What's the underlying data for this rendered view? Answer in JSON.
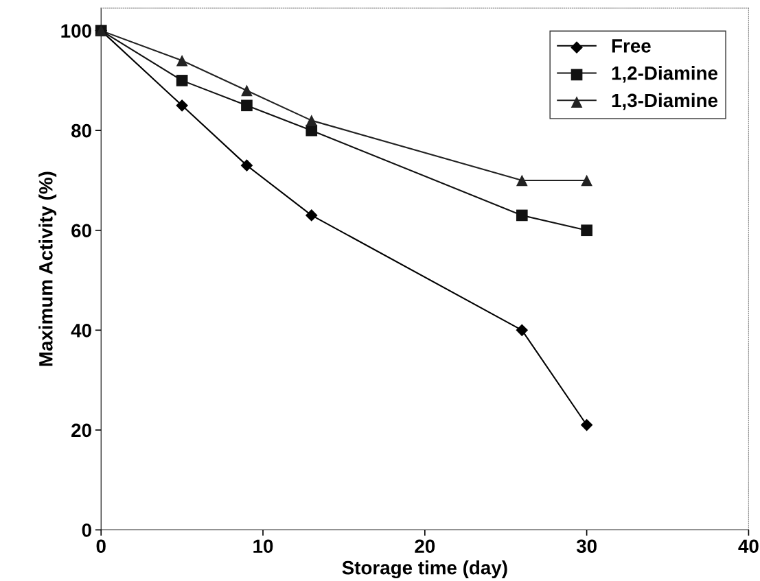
{
  "chart_data": {
    "type": "line",
    "xlabel": "Storage time (day)",
    "ylabel": "Maximum Activity (%)",
    "x": [
      0,
      5,
      9,
      13,
      26,
      30
    ],
    "series": [
      {
        "name": "Free",
        "color": "#000000",
        "marker": "diamond",
        "values": [
          100,
          85,
          73,
          63,
          40,
          21
        ]
      },
      {
        "name": "1,2-Diamine",
        "color": "#111111",
        "marker": "square",
        "values": [
          100,
          90,
          85,
          80,
          63,
          60
        ]
      },
      {
        "name": "1,3-Diamine",
        "color": "#222222",
        "marker": "triangle",
        "values": [
          100,
          94,
          88,
          82,
          70,
          70
        ]
      }
    ],
    "xlim": [
      0,
      40
    ],
    "xticks": [
      0,
      10,
      20,
      30,
      40
    ],
    "ylim": [
      0,
      104.5
    ],
    "yticks": [
      0,
      20,
      40,
      60,
      80,
      100
    ],
    "grid": false,
    "legend": "top right",
    "line_style": "solid"
  }
}
